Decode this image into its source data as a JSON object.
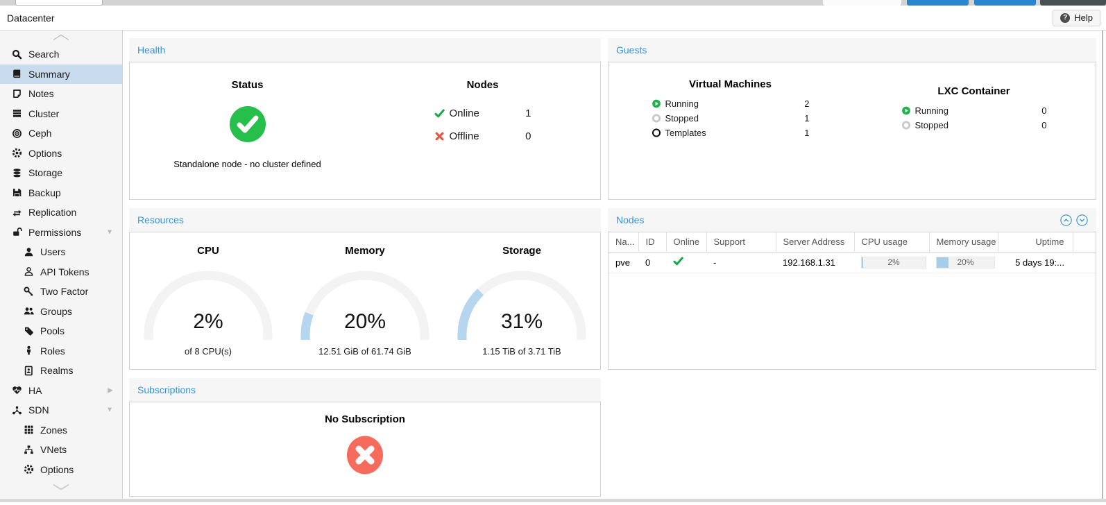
{
  "colors": {
    "accent": "#3a93d5",
    "green": "#23b14d",
    "green_glyph": "#18a849",
    "red": "#e3574b",
    "salmon": "#f76b5c",
    "gauge_fill": "#b5d6ee",
    "gauge_track": "#f3f3f3",
    "selected_bg": "#c8dcee",
    "progress_fill": "#a8cde9"
  },
  "titlebar": {
    "title": "Datacenter",
    "help_label": "Help"
  },
  "sidebar": {
    "items": [
      {
        "id": "search",
        "label": "Search",
        "icon": "search",
        "level": 0
      },
      {
        "id": "summary",
        "label": "Summary",
        "icon": "book",
        "level": 0,
        "selected": true
      },
      {
        "id": "notes",
        "label": "Notes",
        "icon": "note",
        "level": 0
      },
      {
        "id": "cluster",
        "label": "Cluster",
        "icon": "cluster",
        "level": 0
      },
      {
        "id": "ceph",
        "label": "Ceph",
        "icon": "ceph",
        "level": 0
      },
      {
        "id": "options",
        "label": "Options",
        "icon": "gear",
        "level": 0
      },
      {
        "id": "storage",
        "label": "Storage",
        "icon": "db",
        "level": 0
      },
      {
        "id": "backup",
        "label": "Backup",
        "icon": "floppy",
        "level": 0
      },
      {
        "id": "replication",
        "label": "Replication",
        "icon": "repl",
        "level": 0
      },
      {
        "id": "permissions",
        "label": "Permissions",
        "icon": "lock",
        "level": 0,
        "expander": "down"
      },
      {
        "id": "users",
        "label": "Users",
        "icon": "user",
        "level": 1
      },
      {
        "id": "api-tokens",
        "label": "API Tokens",
        "icon": "user-o",
        "level": 1
      },
      {
        "id": "two-factor",
        "label": "Two Factor",
        "icon": "key",
        "level": 1
      },
      {
        "id": "groups",
        "label": "Groups",
        "icon": "users",
        "level": 1
      },
      {
        "id": "pools",
        "label": "Pools",
        "icon": "tag",
        "level": 1
      },
      {
        "id": "roles",
        "label": "Roles",
        "icon": "person",
        "level": 1
      },
      {
        "id": "realms",
        "label": "Realms",
        "icon": "addressbook",
        "level": 1
      },
      {
        "id": "ha",
        "label": "HA",
        "icon": "heartbeat",
        "level": 0,
        "expander": "right"
      },
      {
        "id": "sdn",
        "label": "SDN",
        "icon": "sdn",
        "level": 0,
        "expander": "down"
      },
      {
        "id": "sdn-zones",
        "label": "Zones",
        "icon": "grid",
        "level": 1
      },
      {
        "id": "sdn-vnets",
        "label": "VNets",
        "icon": "vnet",
        "level": 1
      },
      {
        "id": "sdn-options",
        "label": "Options",
        "icon": "gear",
        "level": 1
      }
    ]
  },
  "panels": {
    "health": {
      "title": "Health",
      "status_heading": "Status",
      "status_note": "Standalone node - no cluster defined",
      "nodes_heading": "Nodes",
      "rows": [
        {
          "label": "Online",
          "value": "1",
          "icon": "check"
        },
        {
          "label": "Offline",
          "value": "0",
          "icon": "cross"
        }
      ]
    },
    "guests": {
      "title": "Guests",
      "vm_heading": "Virtual Machines",
      "vm_rows": [
        {
          "label": "Running",
          "value": "2",
          "icon": "running"
        },
        {
          "label": "Stopped",
          "value": "1",
          "icon": "stopped"
        },
        {
          "label": "Templates",
          "value": "1",
          "icon": "template"
        }
      ],
      "lxc_heading": "LXC Container",
      "lxc_rows": [
        {
          "label": "Running",
          "value": "0",
          "icon": "running"
        },
        {
          "label": "Stopped",
          "value": "0",
          "icon": "stopped"
        }
      ]
    },
    "resources": {
      "title": "Resources",
      "gauges": [
        {
          "id": "cpu",
          "heading": "CPU",
          "percent": 2,
          "caption": "of 8 CPU(s)"
        },
        {
          "id": "memory",
          "heading": "Memory",
          "percent": 20,
          "caption": "12.51 GiB of 61.74 GiB"
        },
        {
          "id": "storage",
          "heading": "Storage",
          "percent": 31,
          "caption": "1.15 TiB of 3.71 TiB"
        }
      ]
    },
    "nodes": {
      "title": "Nodes",
      "columns": [
        "Na...",
        "ID",
        "Online",
        "Support",
        "Server Address",
        "CPU usage",
        "Memory usage",
        "Uptime"
      ],
      "rows": [
        {
          "name": "pve",
          "id": "0",
          "online": true,
          "support": "-",
          "server": "192.168.1.31",
          "cpu_pct": 2,
          "cpu_label": "2%",
          "mem_pct": 20,
          "mem_label": "20%",
          "uptime": "5 days 19:..."
        }
      ]
    },
    "subscriptions": {
      "title": "Subscriptions",
      "message": "No Subscription"
    }
  }
}
